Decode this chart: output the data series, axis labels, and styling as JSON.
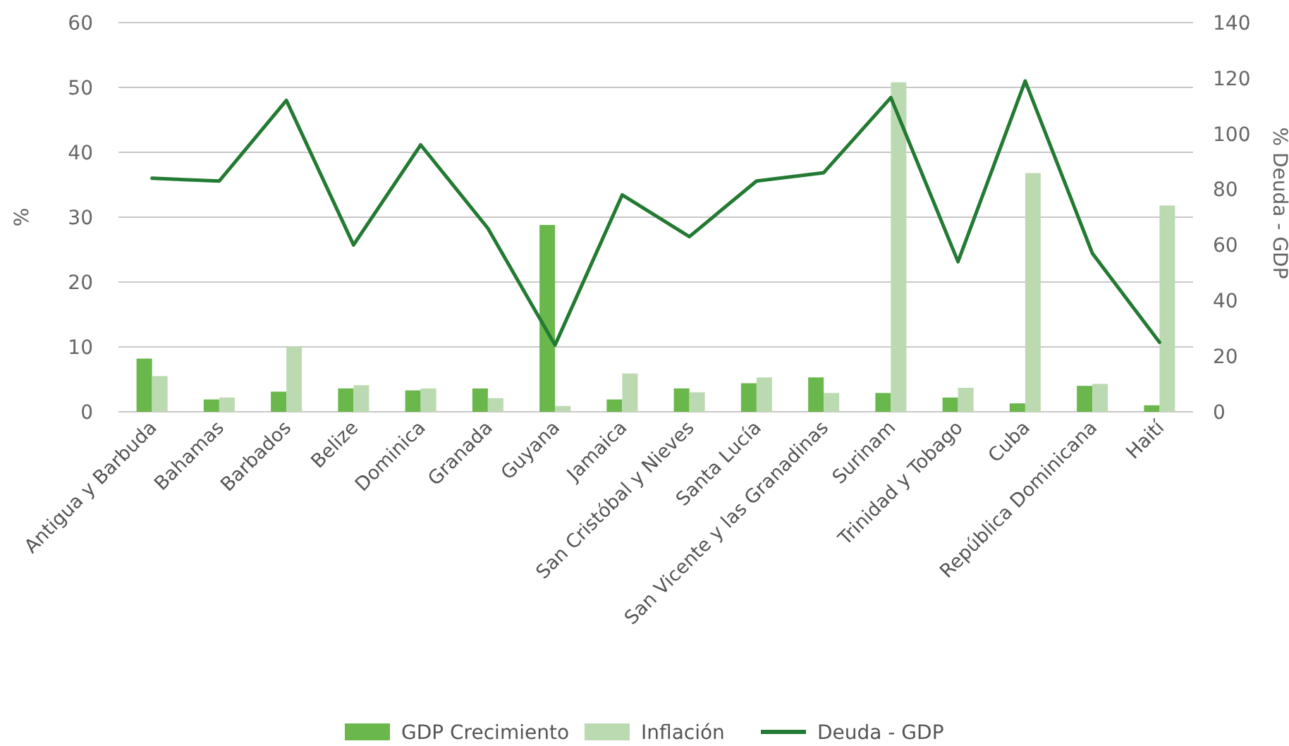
{
  "chart_data": {
    "type": "bar",
    "ylabel": "%",
    "y2label": "% Deuda - GDP",
    "categories": [
      "Antigua y Barbuda",
      "Bahamas",
      "Barbados",
      "Belize",
      "Dominica",
      "Granada",
      "Guyana",
      "Jamaica",
      "San Cristóbal y Nieves",
      "Santa Lucía",
      "San Vicente y las Granadinas",
      "Surinam",
      "Trinidad y Tobago",
      "Cuba",
      "República Dominicana",
      "Haití"
    ],
    "series": [
      {
        "name": "GDP Crecimiento",
        "color": "#6ab74c",
        "values": [
          8.2,
          1.9,
          3.1,
          3.6,
          3.3,
          3.6,
          28.8,
          1.9,
          3.6,
          4.4,
          5.3,
          2.9,
          2.2,
          1.3,
          4.0,
          1.0
        ]
      },
      {
        "name": "Inflación",
        "color": "#bcdab1",
        "values": [
          5.5,
          2.2,
          10,
          4.1,
          3.6,
          2.1,
          0.9,
          5.9,
          3.0,
          5.3,
          2.9,
          50.8,
          3.7,
          36.8,
          4.3,
          31.8
        ]
      },
      {
        "name": "Deuda - GDP",
        "type": "line",
        "axis": "y2",
        "color": "#237a32",
        "values": [
          84,
          83,
          112,
          60,
          96,
          66,
          24,
          78,
          63,
          83,
          86,
          113,
          54,
          119,
          57,
          25
        ]
      }
    ],
    "ylim": [
      0,
      60
    ],
    "yticks": [
      0,
      10,
      20,
      30,
      40,
      50,
      60
    ],
    "y2lim": [
      0,
      140
    ],
    "y2ticks": [
      0,
      20,
      40,
      60,
      80,
      100,
      120,
      140
    ],
    "grid": "y",
    "legend": "bottom"
  }
}
